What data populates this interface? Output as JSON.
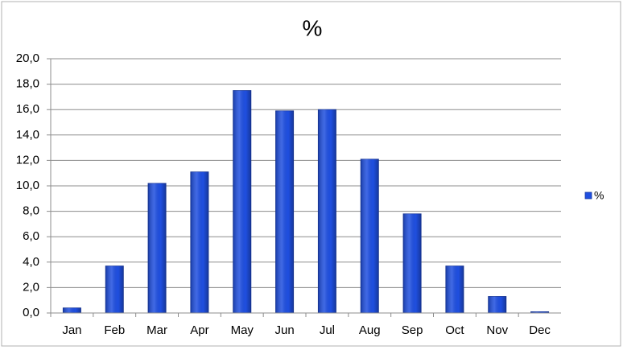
{
  "chart_data": {
    "type": "bar",
    "title": "%",
    "categories": [
      "Jan",
      "Feb",
      "Mar",
      "Apr",
      "May",
      "Jun",
      "Jul",
      "Aug",
      "Sep",
      "Oct",
      "Nov",
      "Dec"
    ],
    "series": [
      {
        "name": "%",
        "color": "#1f4fe0",
        "values": [
          0.4,
          3.7,
          10.2,
          11.1,
          17.5,
          15.9,
          16.0,
          12.1,
          7.8,
          3.7,
          1.3,
          0.1
        ]
      }
    ],
    "ylim": [
      0,
      20
    ],
    "yticks": [
      {
        "value": 0,
        "label": "0,0"
      },
      {
        "value": 2,
        "label": "2,0"
      },
      {
        "value": 4,
        "label": "4,0"
      },
      {
        "value": 6,
        "label": "6,0"
      },
      {
        "value": 8,
        "label": "8,0"
      },
      {
        "value": 10,
        "label": "10,0"
      },
      {
        "value": 12,
        "label": "12,0"
      },
      {
        "value": 14,
        "label": "14,0"
      },
      {
        "value": 16,
        "label": "16,0"
      },
      {
        "value": 18,
        "label": "18,0"
      },
      {
        "value": 20,
        "label": "20,0"
      }
    ],
    "grid": true,
    "legend": "right"
  }
}
